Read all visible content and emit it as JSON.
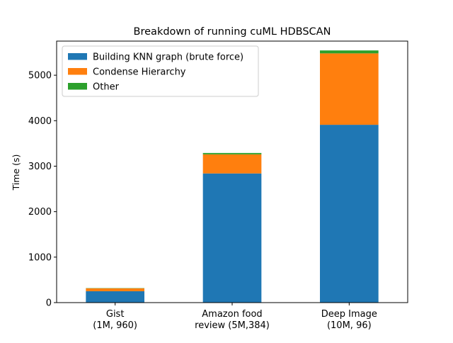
{
  "chart_data": {
    "type": "bar",
    "stacked": true,
    "title": "Breakdown of running cuML HDBSCAN",
    "xlabel": "",
    "ylabel": "Time (s)",
    "ylim": [
      0,
      5750
    ],
    "yticks": [
      0,
      1000,
      2000,
      3000,
      4000,
      5000
    ],
    "categories": [
      [
        "Gist",
        "(1M, 960)"
      ],
      [
        "Amazon food",
        "review (5M,384)"
      ],
      [
        "Deep Image",
        "(10M, 96)"
      ]
    ],
    "series": [
      {
        "name": "Building KNN graph (brute force)",
        "color": "#1f77b4",
        "values": [
          250,
          2840,
          3910
        ]
      },
      {
        "name": "Condense Hierarchy",
        "color": "#ff7f0e",
        "values": [
          65,
          420,
          1570
        ]
      },
      {
        "name": "Other",
        "color": "#2ca02c",
        "values": [
          5,
          30,
          65
        ]
      }
    ],
    "legend": {
      "placement": "upper-left"
    },
    "grid": false
  }
}
